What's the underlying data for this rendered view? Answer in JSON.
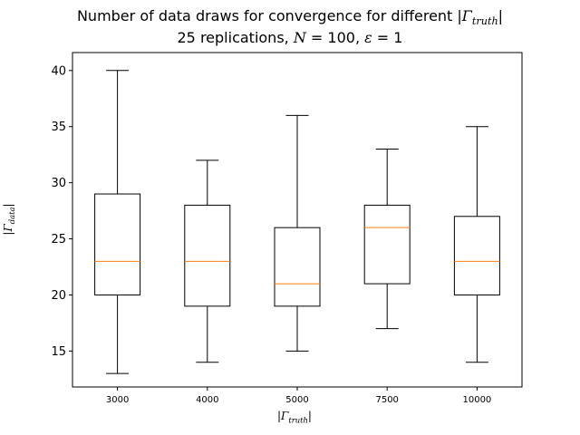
{
  "chart_data": {
    "type": "boxplot",
    "title": {
      "line1_prefix": "Number of data draws for convergence for different |",
      "line1_symbol": "Γ",
      "line1_subscript": "truth",
      "line1_suffix": "|",
      "line2_prefix": "25 replications, ",
      "line2_N": "N",
      "line2_N_value": " = 100, ",
      "line2_eps": "ε",
      "line2_eps_value": " = 1"
    },
    "xlabel": {
      "prefix": "|",
      "symbol": "Γ",
      "subscript": "truth",
      "suffix": "|"
    },
    "ylabel": {
      "prefix": "|",
      "symbol": "Γ",
      "subscript": "data",
      "suffix": "|"
    },
    "ylim": [
      11.8,
      41.6
    ],
    "yticks": [
      15,
      20,
      25,
      30,
      35,
      40
    ],
    "categories": [
      "3000",
      "4000",
      "5000",
      "7500",
      "10000"
    ],
    "boxes": [
      {
        "whislo": 13,
        "q1": 20,
        "median": 23,
        "q3": 29,
        "whishi": 40
      },
      {
        "whislo": 14,
        "q1": 19,
        "median": 23,
        "q3": 28,
        "whishi": 32
      },
      {
        "whislo": 15,
        "q1": 19,
        "median": 21,
        "q3": 26,
        "whishi": 36
      },
      {
        "whislo": 17,
        "q1": 21,
        "median": 26,
        "q3": 28,
        "whishi": 33
      },
      {
        "whislo": 14,
        "q1": 20,
        "median": 23,
        "q3": 27,
        "whishi": 35
      }
    ],
    "grid": false,
    "colors": {
      "box": "#000000",
      "median": "#ff7f0e",
      "background": "#ffffff"
    }
  }
}
